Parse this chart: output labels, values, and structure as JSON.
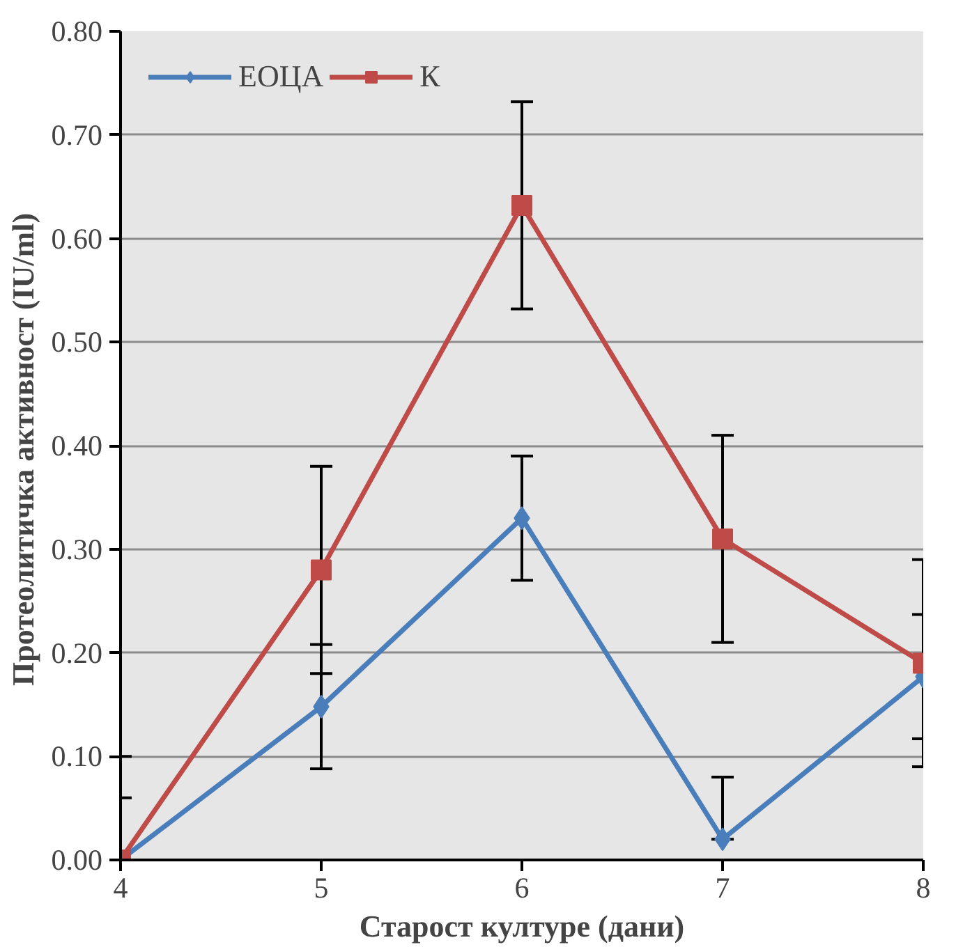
{
  "chart_data": {
    "type": "line",
    "xlabel": "Старост културе (дани)",
    "ylabel": "Протеолитичка  активност (IU/ml)",
    "x": [
      4,
      5,
      6,
      7,
      8
    ],
    "series": [
      {
        "name": "ЕОЦА",
        "color": "#4a7ebb",
        "marker": "diamond",
        "values": [
          0,
          0.148,
          0.33,
          0.02,
          0.177
        ],
        "errors": [
          [
            0,
            0.06
          ],
          0.06,
          0.06,
          [
            0.02,
            0.08
          ],
          0.06
        ]
      },
      {
        "name": "К",
        "color": "#be4b48",
        "marker": "square",
        "values": [
          0,
          0.28,
          0.632,
          0.31,
          0.19
        ],
        "errors": [
          [
            0,
            0.1
          ],
          0.1,
          0.1,
          0.1,
          0.1
        ]
      }
    ],
    "xlim": [
      4,
      8
    ],
    "xticks": [
      4,
      5,
      6,
      7,
      8
    ],
    "ylim": [
      0,
      0.8
    ],
    "yticks": [
      {
        "value": 0,
        "label": "0.00"
      },
      {
        "value": 0.1,
        "label": "0.10"
      },
      {
        "value": 0.2,
        "label": "0.20"
      },
      {
        "value": 0.3,
        "label": "0.30"
      },
      {
        "value": 0.4,
        "label": "0.40"
      },
      {
        "value": 0.5,
        "label": "0.50"
      },
      {
        "value": 0.6,
        "label": "0.60"
      },
      {
        "value": 0.7,
        "label": "0.70"
      },
      {
        "value": 0.8,
        "label": "0.80"
      }
    ],
    "grid": "y",
    "legend": "top left",
    "line_style": "solid"
  }
}
